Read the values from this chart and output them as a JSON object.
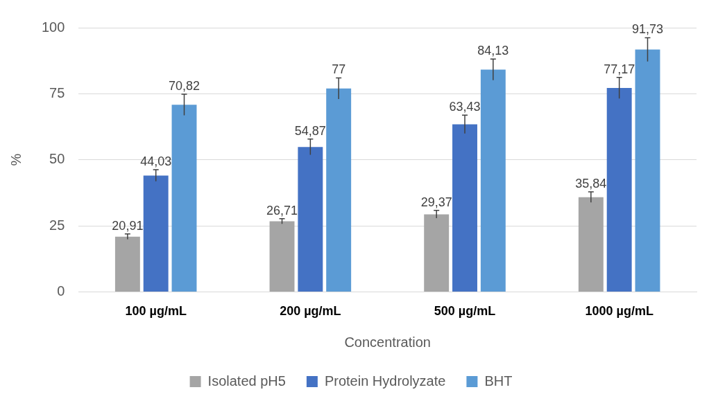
{
  "chart_data": {
    "type": "bar",
    "xlabel": "Concentration",
    "ylabel": "%",
    "categories": [
      "100 µg/mL",
      "200 µg/mL",
      "500 µg/mL",
      "1000 µg/mL"
    ],
    "ylim": [
      0,
      100
    ],
    "yticks": [
      0,
      25,
      50,
      75,
      100
    ],
    "grid": "y",
    "legend": "bottom",
    "series": [
      {
        "name": "Isolated pH5",
        "color": "#a5a5a5",
        "values": [
          20.91,
          26.71,
          29.37,
          35.84
        ],
        "errors": [
          1,
          1,
          1.5,
          2
        ],
        "value_labels": [
          "20,91",
          "26,71",
          "29,37",
          "35,84"
        ]
      },
      {
        "name": "Protein Hydrolyzate",
        "color": "#4472c4",
        "values": [
          44.03,
          54.87,
          63.43,
          77.17
        ],
        "errors": [
          2.2,
          3,
          3.5,
          4
        ],
        "value_labels": [
          "44,03",
          "54,87",
          "63,43",
          "77,17"
        ]
      },
      {
        "name": "BHT",
        "color": "#5b9bd5",
        "values": [
          70.82,
          77,
          84.13,
          91.73
        ],
        "errors": [
          4,
          4,
          4,
          4.5
        ],
        "value_labels": [
          "70,82",
          "77",
          "84,13",
          "91,73"
        ]
      }
    ]
  }
}
